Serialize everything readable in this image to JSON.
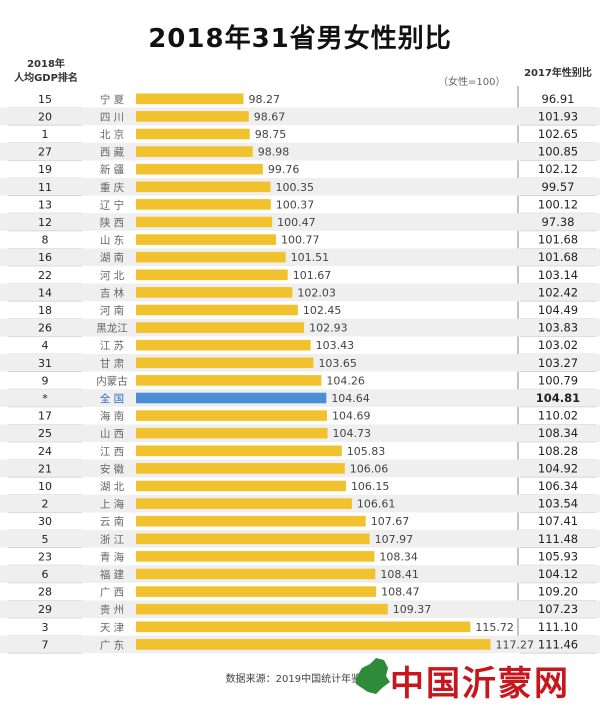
{
  "title": "2018年31省男女性别比",
  "header_left_line1": "2018年",
  "header_left_line2": "人均GDP排名",
  "header_right": "2017年性别比",
  "unit_note": "（女性=100）",
  "footer": "数据来源：2019中国统计年鉴  制",
  "logo_text": "中国沂蒙网",
  "colors": {
    "bar": "#f2c12e",
    "national_bar": "#4a8fd6",
    "stripe": "#efefef"
  },
  "chart_data": {
    "type": "bar",
    "orientation": "horizontal",
    "title": "2018年31省男女性别比",
    "xlim": [
      90,
      118
    ],
    "categories": [
      "宁 夏",
      "四 川",
      "北 京",
      "西 藏",
      "新 疆",
      "重 庆",
      "辽 宁",
      "陕 西",
      "山 东",
      "湖 南",
      "河 北",
      "吉 林",
      "河 南",
      "黑龙江",
      "江 苏",
      "甘 肃",
      "内蒙古",
      "全 国",
      "海 南",
      "山 西",
      "江 西",
      "安 徽",
      "湖 北",
      "上 海",
      "云 南",
      "浙 江",
      "青 海",
      "福 建",
      "广 西",
      "贵 州",
      "天 津",
      "广 东"
    ],
    "values": [
      "98.27",
      "98.67",
      "98.75",
      "98.98",
      "99.76",
      "100.35",
      "100.37",
      "100.47",
      "100.77",
      "101.51",
      "101.67",
      "102.03",
      "102.45",
      "102.93",
      "103.43",
      "103.65",
      "104.26",
      "104.64",
      "104.69",
      "104.73",
      "105.83",
      "106.06",
      "106.15",
      "106.61",
      "107.67",
      "107.97",
      "108.34",
      "108.41",
      "108.47",
      "109.37",
      "115.72",
      "117.27"
    ],
    "gdp_rank": [
      "15",
      "20",
      "1",
      "27",
      "19",
      "11",
      "13",
      "12",
      "8",
      "16",
      "22",
      "14",
      "18",
      "26",
      "4",
      "31",
      "9",
      "*",
      "17",
      "25",
      "24",
      "21",
      "10",
      "2",
      "30",
      "5",
      "23",
      "6",
      "28",
      "29",
      "3",
      "7"
    ],
    "sex_ratio_2017": [
      "96.91",
      "101.93",
      "102.65",
      "100.85",
      "102.12",
      "99.57",
      "100.12",
      "97.38",
      "101.68",
      "101.68",
      "103.14",
      "102.42",
      "104.49",
      "103.83",
      "103.02",
      "103.27",
      "100.79",
      "104.81",
      "110.02",
      "108.34",
      "108.28",
      "104.92",
      "106.34",
      "103.54",
      "107.41",
      "111.48",
      "105.93",
      "104.12",
      "109.20",
      "107.23",
      "111.10",
      "111.46"
    ],
    "highlight_category": "全 国"
  }
}
